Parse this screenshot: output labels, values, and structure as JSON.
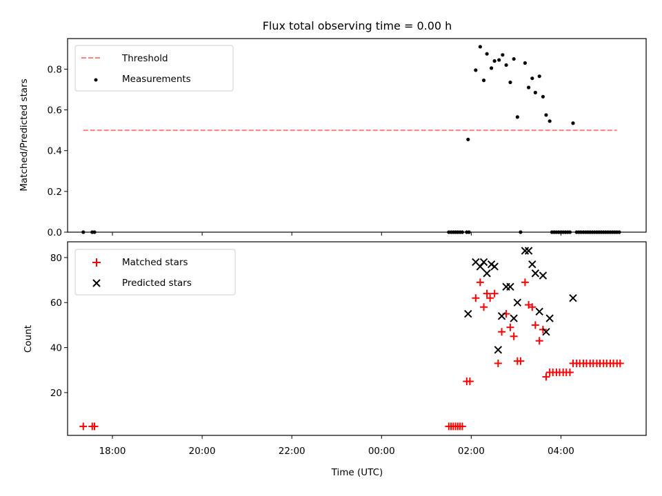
{
  "chart_data": [
    {
      "type": "scatter",
      "title": "Flux total observing time = 0.00 h",
      "xlabel": "",
      "ylabel": "Matched/Predicted stars",
      "xlim_hours": [
        -7.0,
        5.9
      ],
      "ylim": [
        0,
        0.95
      ],
      "yticks": [
        0.0,
        0.2,
        0.4,
        0.6,
        0.8
      ],
      "ytick_labels": [
        "0.0",
        "0.2",
        "0.4",
        "0.6",
        "0.8"
      ],
      "legend_position": "top-left",
      "threshold": {
        "name": "Threshold",
        "y": 0.5,
        "x_range_hours": [
          -6.65,
          5.25
        ],
        "color": "#ff7f7f",
        "style": "dashed"
      },
      "series": [
        {
          "name": "Measurements",
          "marker": "dot",
          "color": "#000000",
          "points": [
            [
              -6.65,
              0
            ],
            [
              -6.45,
              0
            ],
            [
              -6.4,
              0
            ],
            [
              1.5,
              0
            ],
            [
              1.55,
              0
            ],
            [
              1.6,
              0
            ],
            [
              1.65,
              0
            ],
            [
              1.7,
              0
            ],
            [
              1.75,
              0
            ],
            [
              1.8,
              0
            ],
            [
              1.9,
              0
            ],
            [
              1.95,
              0
            ],
            [
              3.1,
              0
            ],
            [
              3.8,
              0
            ],
            [
              3.85,
              0
            ],
            [
              3.9,
              0
            ],
            [
              3.95,
              0
            ],
            [
              4.0,
              0
            ],
            [
              4.05,
              0
            ],
            [
              4.1,
              0
            ],
            [
              4.15,
              0
            ],
            [
              4.2,
              0
            ],
            [
              4.35,
              0
            ],
            [
              4.4,
              0
            ],
            [
              4.45,
              0
            ],
            [
              4.5,
              0
            ],
            [
              4.55,
              0
            ],
            [
              4.6,
              0
            ],
            [
              4.65,
              0
            ],
            [
              4.7,
              0
            ],
            [
              4.75,
              0
            ],
            [
              4.8,
              0
            ],
            [
              4.85,
              0
            ],
            [
              4.9,
              0
            ],
            [
              4.95,
              0
            ],
            [
              5.0,
              0
            ],
            [
              5.05,
              0
            ],
            [
              5.1,
              0
            ],
            [
              5.15,
              0
            ],
            [
              5.2,
              0
            ],
            [
              5.25,
              0
            ],
            [
              5.3,
              0
            ],
            [
              1.93,
              0.455
            ],
            [
              2.1,
              0.795
            ],
            [
              2.2,
              0.91
            ],
            [
              2.28,
              0.745
            ],
            [
              2.35,
              0.875
            ],
            [
              2.45,
              0.805
            ],
            [
              2.52,
              0.84
            ],
            [
              2.62,
              0.845
            ],
            [
              2.7,
              0.87
            ],
            [
              2.78,
              0.82
            ],
            [
              2.87,
              0.735
            ],
            [
              2.95,
              0.85
            ],
            [
              3.03,
              0.565
            ],
            [
              3.2,
              0.83
            ],
            [
              3.28,
              0.71
            ],
            [
              3.36,
              0.755
            ],
            [
              3.43,
              0.685
            ],
            [
              3.52,
              0.765
            ],
            [
              3.6,
              0.665
            ],
            [
              3.67,
              0.575
            ],
            [
              3.75,
              0.545
            ],
            [
              4.27,
              0.535
            ]
          ]
        }
      ]
    },
    {
      "type": "scatter",
      "title": "",
      "xlabel": "Time (UTC)",
      "ylabel": "Count",
      "xlim_hours": [
        -7.0,
        5.9
      ],
      "ylim": [
        1,
        87
      ],
      "yticks": [
        20,
        40,
        60,
        80
      ],
      "ytick_labels": [
        "20",
        "40",
        "60",
        "80"
      ],
      "xticks_hours": [
        -6,
        -4,
        -2,
        0,
        2,
        4
      ],
      "xtick_labels": [
        "18:00",
        "20:00",
        "22:00",
        "00:00",
        "02:00",
        "04:00"
      ],
      "legend_position": "top-left",
      "series": [
        {
          "name": "Matched stars",
          "marker": "plus",
          "color": "#ff0000",
          "points": [
            [
              -6.65,
              5
            ],
            [
              -6.45,
              5
            ],
            [
              -6.4,
              5
            ],
            [
              1.5,
              5
            ],
            [
              1.55,
              5
            ],
            [
              1.6,
              5
            ],
            [
              1.65,
              5
            ],
            [
              1.7,
              5
            ],
            [
              1.75,
              5
            ],
            [
              1.8,
              5
            ],
            [
              1.9,
              25
            ],
            [
              1.97,
              25
            ],
            [
              2.1,
              62
            ],
            [
              2.2,
              69
            ],
            [
              2.28,
              58
            ],
            [
              2.35,
              64
            ],
            [
              2.42,
              62
            ],
            [
              2.52,
              64
            ],
            [
              2.6,
              33
            ],
            [
              2.68,
              47
            ],
            [
              2.78,
              55
            ],
            [
              2.87,
              49
            ],
            [
              2.95,
              45
            ],
            [
              3.03,
              34
            ],
            [
              3.1,
              34
            ],
            [
              3.2,
              69
            ],
            [
              3.28,
              59
            ],
            [
              3.36,
              58
            ],
            [
              3.43,
              50
            ],
            [
              3.52,
              43
            ],
            [
              3.6,
              48
            ],
            [
              3.67,
              27
            ],
            [
              3.75,
              29
            ],
            [
              3.82,
              29
            ],
            [
              3.9,
              29
            ],
            [
              3.97,
              29
            ],
            [
              4.05,
              29
            ],
            [
              4.12,
              29
            ],
            [
              4.2,
              29
            ],
            [
              4.27,
              33
            ],
            [
              4.35,
              33
            ],
            [
              4.42,
              33
            ],
            [
              4.5,
              33
            ],
            [
              4.57,
              33
            ],
            [
              4.65,
              33
            ],
            [
              4.72,
              33
            ],
            [
              4.8,
              33
            ],
            [
              4.87,
              33
            ],
            [
              4.95,
              33
            ],
            [
              5.02,
              33
            ],
            [
              5.1,
              33
            ],
            [
              5.17,
              33
            ],
            [
              5.25,
              33
            ],
            [
              5.32,
              33
            ]
          ]
        },
        {
          "name": "Predicted stars",
          "marker": "x",
          "color": "#000000",
          "points": [
            [
              1.93,
              55
            ],
            [
              2.1,
              78
            ],
            [
              2.2,
              76
            ],
            [
              2.28,
              78
            ],
            [
              2.35,
              73
            ],
            [
              2.45,
              77
            ],
            [
              2.52,
              76
            ],
            [
              2.6,
              39
            ],
            [
              2.68,
              54
            ],
            [
              2.78,
              67
            ],
            [
              2.87,
              67
            ],
            [
              2.95,
              53
            ],
            [
              3.03,
              60
            ],
            [
              3.2,
              83
            ],
            [
              3.28,
              83
            ],
            [
              3.36,
              77
            ],
            [
              3.43,
              73
            ],
            [
              3.52,
              56
            ],
            [
              3.6,
              72
            ],
            [
              3.67,
              47
            ],
            [
              3.75,
              53
            ],
            [
              4.27,
              62
            ]
          ]
        }
      ]
    }
  ]
}
